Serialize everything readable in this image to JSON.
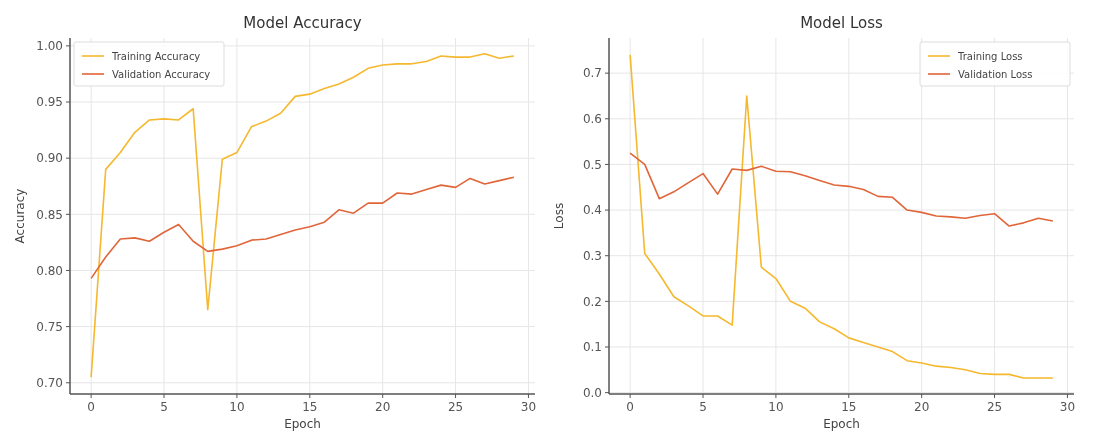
{
  "chart_data": [
    {
      "type": "line",
      "title": "Model Accuracy",
      "xlabel": "Epoch",
      "ylabel": "Accuracy",
      "x": [
        0,
        1,
        2,
        3,
        4,
        5,
        6,
        7,
        8,
        9,
        10,
        11,
        12,
        13,
        14,
        15,
        16,
        17,
        18,
        19,
        20,
        21,
        22,
        23,
        24,
        25,
        26,
        27,
        28,
        29
      ],
      "series": [
        {
          "name": "Training Accuracy",
          "color": "#f5b82e",
          "values": [
            0.705,
            0.89,
            0.905,
            0.923,
            0.934,
            0.935,
            0.934,
            0.944,
            0.765,
            0.899,
            0.905,
            0.928,
            0.933,
            0.94,
            0.955,
            0.957,
            0.962,
            0.966,
            0.972,
            0.98,
            0.983,
            0.984,
            0.984,
            0.986,
            0.991,
            0.99,
            0.99,
            0.993,
            0.989,
            0.991
          ]
        },
        {
          "name": "Validation Accuracy",
          "color": "#e0663a",
          "values": [
            0.793,
            0.812,
            0.828,
            0.829,
            0.826,
            0.834,
            0.841,
            0.826,
            0.817,
            0.819,
            0.822,
            0.827,
            0.828,
            0.832,
            0.836,
            0.839,
            0.843,
            0.854,
            0.851,
            0.86,
            0.86,
            0.869,
            0.868,
            0.872,
            0.876,
            0.874,
            0.882,
            0.877,
            0.88,
            0.883
          ]
        }
      ],
      "xlim": [
        -1.45,
        30.45
      ],
      "xticks": [
        0,
        5,
        10,
        15,
        20,
        25,
        30
      ],
      "ylim": [
        0.69,
        1.007
      ],
      "yticks": [
        {
          "value": 0.7,
          "label": "0.70"
        },
        {
          "value": 0.75,
          "label": "0.75"
        },
        {
          "value": 0.8,
          "label": "0.80"
        },
        {
          "value": 0.85,
          "label": "0.85"
        },
        {
          "value": 0.9,
          "label": "0.90"
        },
        {
          "value": 0.95,
          "label": "0.95"
        },
        {
          "value": 1.0,
          "label": "1.00"
        }
      ],
      "grid": true,
      "legend": "top left"
    },
    {
      "type": "line",
      "title": "Model Loss",
      "xlabel": "Epoch",
      "ylabel": "Loss",
      "x": [
        0,
        1,
        2,
        3,
        4,
        5,
        6,
        7,
        8,
        9,
        10,
        11,
        12,
        13,
        14,
        15,
        16,
        17,
        18,
        19,
        20,
        21,
        22,
        23,
        24,
        25,
        26,
        27,
        28,
        29
      ],
      "series": [
        {
          "name": "Training Loss",
          "color": "#f5b82e",
          "values": [
            0.74,
            0.305,
            0.26,
            0.21,
            0.19,
            0.168,
            0.168,
            0.148,
            0.65,
            0.275,
            0.25,
            0.2,
            0.185,
            0.155,
            0.14,
            0.12,
            0.11,
            0.1,
            0.09,
            0.07,
            0.065,
            0.058,
            0.055,
            0.05,
            0.042,
            0.04,
            0.04,
            0.032,
            0.032,
            0.032
          ]
        },
        {
          "name": "Validation Loss",
          "color": "#e0663a",
          "values": [
            0.525,
            0.5,
            0.425,
            0.44,
            0.46,
            0.48,
            0.435,
            0.49,
            0.487,
            0.496,
            0.485,
            0.484,
            0.475,
            0.465,
            0.455,
            0.452,
            0.445,
            0.43,
            0.428,
            0.4,
            0.395,
            0.387,
            0.385,
            0.382,
            0.388,
            0.392,
            0.365,
            0.372,
            0.382,
            0.376
          ]
        }
      ],
      "xlim": [
        -1.45,
        30.45
      ],
      "xticks": [
        0,
        5,
        10,
        15,
        20,
        25,
        30
      ],
      "ylim": [
        -0.003,
        0.777
      ],
      "yticks": [
        {
          "value": 0,
          "label": "0.0"
        },
        {
          "value": 0.1,
          "label": "0.1"
        },
        {
          "value": 0.2,
          "label": "0.2"
        },
        {
          "value": 0.3,
          "label": "0.3"
        },
        {
          "value": 0.4,
          "label": "0.4"
        },
        {
          "value": 0.5,
          "label": "0.5"
        },
        {
          "value": 0.6,
          "label": "0.6"
        },
        {
          "value": 0.7,
          "label": "0.7"
        }
      ],
      "grid": true,
      "legend": "top right"
    }
  ]
}
